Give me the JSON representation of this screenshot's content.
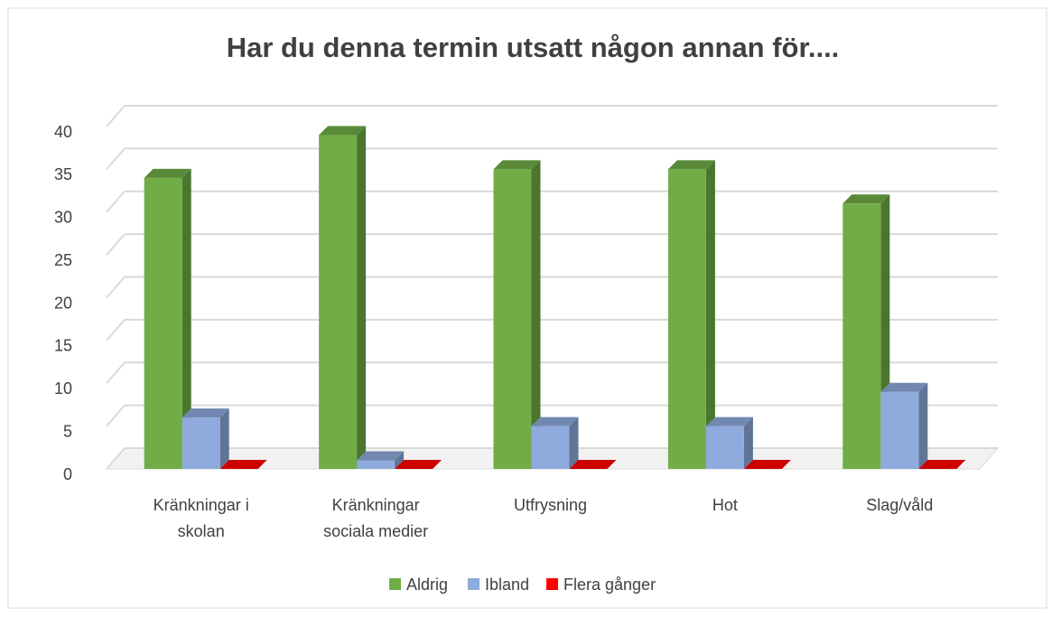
{
  "chart_data": {
    "type": "bar3d",
    "title": "Har du denna termin utsatt någon annan för....",
    "categories": [
      "Kränkningar i skolan",
      "Kränkningar sociala medier",
      "Utfrysning",
      "Hot",
      "Slag/våld"
    ],
    "series": [
      {
        "name": "Aldrig",
        "color": "#70ad47",
        "values": [
          34,
          39,
          35,
          35,
          31
        ]
      },
      {
        "name": "Ibland",
        "color": "#8faadc",
        "values": [
          6,
          1,
          5,
          5,
          9
        ]
      },
      {
        "name": "Flera gånger",
        "color": "#ff0000",
        "values": [
          0,
          0,
          0,
          0,
          0
        ]
      }
    ],
    "ylim": [
      0,
      40
    ],
    "yticks": [
      0,
      5,
      10,
      15,
      20,
      25,
      30,
      35,
      40
    ],
    "grid": true,
    "legend": "bottom"
  }
}
